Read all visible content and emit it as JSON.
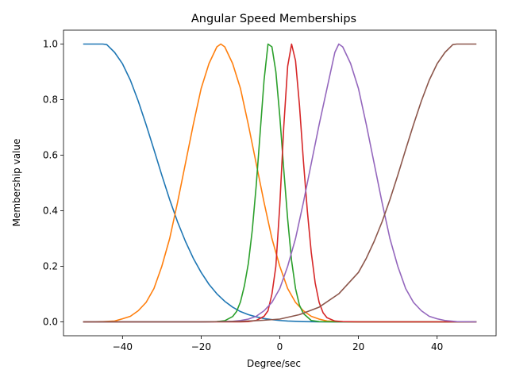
{
  "chart_data": {
    "type": "line",
    "title": "Angular Speed Memberships",
    "xlabel": "Degree/sec",
    "ylabel": "Membership value",
    "xlim": [
      -55,
      55
    ],
    "ylim": [
      -0.05,
      1.05
    ],
    "xticks": [
      -40,
      -20,
      0,
      20,
      40
    ],
    "xtick_labels": [
      "−40",
      "−20",
      "0",
      "20",
      "40"
    ],
    "yticks": [
      0.0,
      0.2,
      0.4,
      0.6,
      0.8,
      1.0
    ],
    "ytick_labels": [
      "0.0",
      "0.2",
      "0.4",
      "0.6",
      "0.8",
      "1.0"
    ],
    "grid": false,
    "series": [
      {
        "color": "#1f77b4",
        "x": [
          -50,
          -45,
          -44,
          -42,
          -40,
          -38,
          -36,
          -34,
          -32,
          -30,
          -28,
          -26,
          -24,
          -22,
          -20,
          -18,
          -16,
          -14,
          -12,
          -10,
          -8,
          -6,
          -4,
          -2,
          0,
          2,
          4,
          6,
          8,
          10,
          15,
          20,
          30,
          40,
          50
        ],
        "values": [
          1.0,
          1.0,
          0.998,
          0.97,
          0.929,
          0.87,
          0.795,
          0.71,
          0.62,
          0.528,
          0.44,
          0.36,
          0.29,
          0.229,
          0.178,
          0.135,
          0.101,
          0.074,
          0.053,
          0.037,
          0.026,
          0.018,
          0.012,
          0.008,
          0.005,
          0.003,
          0.002,
          0.001,
          0.0006,
          0.0003,
          0.0001,
          0.0,
          0.0,
          0.0,
          0.0
        ]
      },
      {
        "color": "#ff7f0e",
        "x": [
          -50,
          -45,
          -42,
          -40,
          -38,
          -36,
          -34,
          -32,
          -30,
          -28,
          -26,
          -24,
          -22,
          -20,
          -18,
          -16,
          -15,
          -14,
          -12,
          -10,
          -8,
          -6,
          -4,
          -2,
          0,
          2,
          4,
          6,
          8,
          10,
          12,
          15,
          20,
          30,
          40,
          50
        ],
        "values": [
          0.0,
          0.001,
          0.003,
          0.011,
          0.02,
          0.04,
          0.07,
          0.12,
          0.2,
          0.3,
          0.43,
          0.57,
          0.71,
          0.84,
          0.93,
          0.99,
          1.0,
          0.99,
          0.93,
          0.84,
          0.71,
          0.57,
          0.43,
          0.3,
          0.2,
          0.12,
          0.07,
          0.04,
          0.02,
          0.01,
          0.003,
          0.001,
          0.0,
          0.0,
          0.0,
          0.0
        ]
      },
      {
        "color": "#2ca02c",
        "x": [
          -50,
          -20,
          -16,
          -14,
          -12,
          -11,
          -10,
          -9,
          -8,
          -7,
          -6,
          -5,
          -4,
          -3,
          -2,
          -1,
          0,
          1,
          2,
          3,
          4,
          5,
          6,
          8,
          10,
          14,
          20,
          50
        ],
        "values": [
          0.0,
          0.0,
          0.001,
          0.004,
          0.019,
          0.037,
          0.072,
          0.13,
          0.21,
          0.33,
          0.49,
          0.68,
          0.87,
          1.0,
          0.99,
          0.9,
          0.74,
          0.55,
          0.37,
          0.22,
          0.12,
          0.06,
          0.03,
          0.005,
          0.001,
          0.0,
          0.0,
          0.0
        ]
      },
      {
        "color": "#d62728",
        "x": [
          -50,
          -10,
          -8,
          -6,
          -4,
          -3,
          -2,
          -1,
          0,
          1,
          2,
          3,
          4,
          5,
          6,
          7,
          8,
          9,
          10,
          11,
          12,
          14,
          16,
          20,
          50
        ],
        "values": [
          0.0,
          0.0,
          0.001,
          0.005,
          0.02,
          0.04,
          0.1,
          0.2,
          0.42,
          0.7,
          0.92,
          1.0,
          0.94,
          0.78,
          0.58,
          0.4,
          0.25,
          0.14,
          0.07,
          0.033,
          0.015,
          0.003,
          0.001,
          0.0,
          0.0
        ]
      },
      {
        "color": "#9467bd",
        "x": [
          -50,
          -20,
          -15,
          -12,
          -10,
          -8,
          -6,
          -4,
          -2,
          0,
          2,
          4,
          6,
          8,
          10,
          12,
          14,
          15,
          16,
          18,
          20,
          22,
          24,
          26,
          28,
          30,
          32,
          34,
          36,
          38,
          40,
          42,
          45,
          50
        ],
        "values": [
          0.0,
          0.0,
          0.001,
          0.002,
          0.005,
          0.01,
          0.02,
          0.04,
          0.07,
          0.12,
          0.2,
          0.3,
          0.43,
          0.57,
          0.71,
          0.84,
          0.97,
          1.0,
          0.99,
          0.93,
          0.84,
          0.71,
          0.57,
          0.43,
          0.3,
          0.2,
          0.12,
          0.07,
          0.04,
          0.02,
          0.011,
          0.005,
          0.001,
          0.0
        ]
      },
      {
        "color": "#8c564b",
        "x": [
          -50,
          -20,
          -10,
          -5,
          0,
          5,
          10,
          15,
          20,
          22,
          24,
          26,
          28,
          30,
          32,
          34,
          36,
          38,
          40,
          42,
          44,
          45,
          50
        ],
        "values": [
          0.0,
          0.0,
          0.002,
          0.005,
          0.01,
          0.026,
          0.053,
          0.101,
          0.178,
          0.229,
          0.29,
          0.36,
          0.44,
          0.528,
          0.62,
          0.71,
          0.795,
          0.87,
          0.929,
          0.97,
          0.998,
          1.0,
          1.0
        ]
      }
    ]
  }
}
